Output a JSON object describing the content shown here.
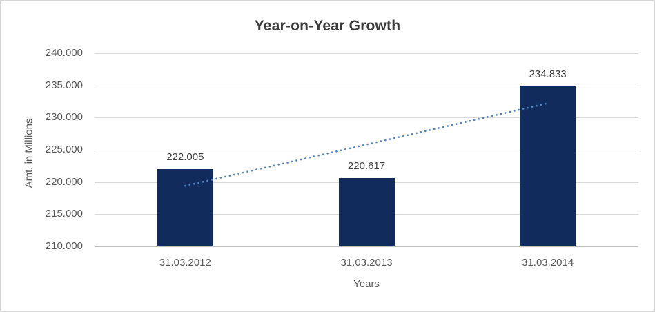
{
  "chart_data": {
    "type": "bar",
    "title": "Year-on-Year Growth",
    "xlabel": "Years",
    "ylabel": "Amt. in Millions",
    "categories": [
      "31.03.2012",
      "31.03.2013",
      "31.03.2014"
    ],
    "values": [
      222.005,
      220.617,
      234.833
    ],
    "data_labels": [
      "222.005",
      "220.617",
      "234.833"
    ],
    "ylim": [
      210,
      240
    ],
    "ytick_labels": [
      "240.000",
      "235.000",
      "230.000",
      "225.000",
      "220.000",
      "215.000",
      "210.000"
    ],
    "grid": true,
    "legend": "none",
    "trendline": {
      "type": "linear",
      "style": "dotted",
      "fit_values": [
        219.404,
        232.232
      ]
    },
    "colors": {
      "bar": "#102b5c",
      "trendline": "#4f86c5",
      "gridline": "#d9d9d9",
      "axis_line": "#bfbfbf",
      "title_text": "#3b3b3b",
      "tick_text": "#595959",
      "data_label_text": "#404040",
      "border": "#d4d4d4"
    }
  }
}
